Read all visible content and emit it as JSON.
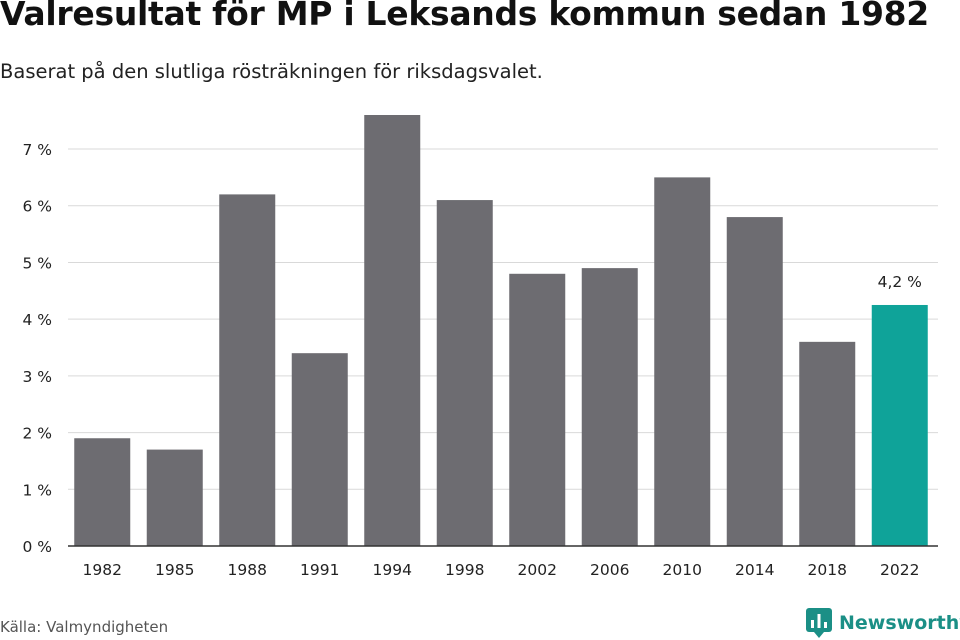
{
  "header": {
    "title": "Valresultat för MP i Leksands kommun sedan 1982",
    "subtitle": "Baserat på den slutliga rösträkningen för riksdagsvalet."
  },
  "footer": {
    "source": "Källa: Valmyndigheten",
    "brand": "Newsworthy",
    "brand_icon": "newsworthy-logo-icon"
  },
  "colors": {
    "bar": "#6d6c71",
    "highlight": "#0fa399",
    "grid": "#d9d9d9",
    "axis": "#333333",
    "brand": "#1b8f86"
  },
  "chart_data": {
    "type": "bar",
    "categories": [
      "1982",
      "1985",
      "1988",
      "1991",
      "1994",
      "1998",
      "2002",
      "2006",
      "2010",
      "2014",
      "2018",
      "2022"
    ],
    "values": [
      1.9,
      1.7,
      6.2,
      3.4,
      7.6,
      6.1,
      4.8,
      4.9,
      6.5,
      5.8,
      3.6,
      4.25
    ],
    "highlight_index": 11,
    "annotation": "4,2 %",
    "title": "Valresultat för MP i Leksands kommun sedan 1982",
    "subtitle": "Baserat på den slutliga rösträkningen för riksdagsvalet.",
    "xlabel": "",
    "ylabel": "",
    "ylim": [
      0,
      7.6
    ],
    "yticks": [
      0,
      1,
      2,
      3,
      4,
      5,
      6,
      7
    ],
    "ytick_labels": [
      "0 %",
      "1 %",
      "2 %",
      "3 %",
      "4 %",
      "5 %",
      "6 %",
      "7 %"
    ],
    "grid": true,
    "legend": "none"
  }
}
